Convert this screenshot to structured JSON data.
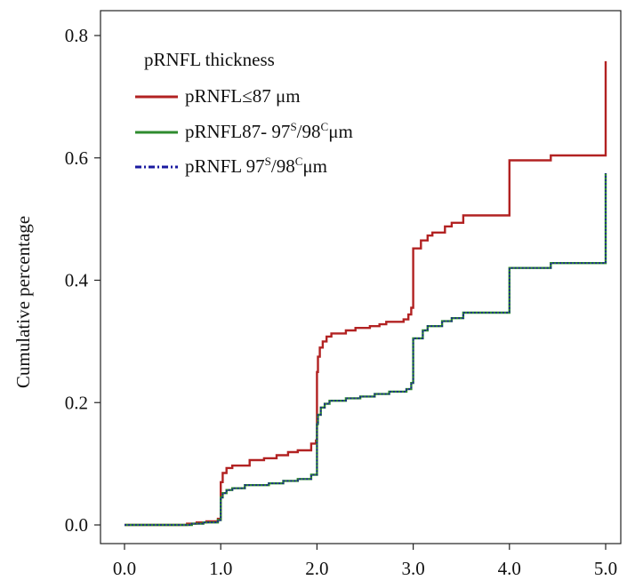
{
  "chart_data": {
    "type": "line",
    "title": "",
    "xlabel": "",
    "ylabel": "Cumulative percentage",
    "xlim": [
      0,
      5
    ],
    "ylim": [
      0,
      0.8
    ],
    "x_ticks": [
      "0.0",
      "1.0",
      "2.0",
      "3.0",
      "4.0",
      "5.0"
    ],
    "y_ticks": [
      "0.0",
      "0.2",
      "0.4",
      "0.6",
      "0.8"
    ],
    "grid": false,
    "legend": {
      "title": "pRNFL thickness",
      "placement": "top-left",
      "entries": [
        {
          "series": 0,
          "text": "pRNFL≤87 μm",
          "style": "solid"
        },
        {
          "series": 1,
          "text": "pRNFL87- 97",
          "sup1": "S",
          "mid": "/98",
          "sup2": "C",
          "tail": "μm",
          "style": "solid"
        },
        {
          "series": 2,
          "text": "pRNFL 97",
          "sup1": "S",
          "mid": "/98",
          "sup2": "C",
          "tail": "μm",
          "style": "dashdot"
        }
      ]
    },
    "series": [
      {
        "name": "pRNFL≤87 μm",
        "color": "#b22222",
        "style": "solid",
        "points": [
          [
            0.0,
            0.0
          ],
          [
            0.65,
            0.0
          ],
          [
            0.65,
            0.002
          ],
          [
            0.75,
            0.002
          ],
          [
            0.75,
            0.004
          ],
          [
            0.85,
            0.004
          ],
          [
            0.85,
            0.006
          ],
          [
            0.97,
            0.006
          ],
          [
            0.97,
            0.01
          ],
          [
            1.0,
            0.01
          ],
          [
            1.0,
            0.07
          ],
          [
            1.02,
            0.07
          ],
          [
            1.02,
            0.085
          ],
          [
            1.06,
            0.085
          ],
          [
            1.06,
            0.093
          ],
          [
            1.12,
            0.093
          ],
          [
            1.12,
            0.097
          ],
          [
            1.3,
            0.097
          ],
          [
            1.3,
            0.106
          ],
          [
            1.45,
            0.106
          ],
          [
            1.45,
            0.109
          ],
          [
            1.58,
            0.109
          ],
          [
            1.58,
            0.114
          ],
          [
            1.7,
            0.114
          ],
          [
            1.7,
            0.119
          ],
          [
            1.8,
            0.119
          ],
          [
            1.8,
            0.122
          ],
          [
            1.94,
            0.122
          ],
          [
            1.94,
            0.133
          ],
          [
            1.99,
            0.133
          ],
          [
            1.99,
            0.138
          ],
          [
            2.0,
            0.138
          ],
          [
            2.0,
            0.25
          ],
          [
            2.01,
            0.25
          ],
          [
            2.01,
            0.275
          ],
          [
            2.03,
            0.275
          ],
          [
            2.03,
            0.29
          ],
          [
            2.06,
            0.29
          ],
          [
            2.06,
            0.3
          ],
          [
            2.1,
            0.3
          ],
          [
            2.1,
            0.308
          ],
          [
            2.15,
            0.308
          ],
          [
            2.15,
            0.313
          ],
          [
            2.3,
            0.313
          ],
          [
            2.3,
            0.318
          ],
          [
            2.4,
            0.318
          ],
          [
            2.4,
            0.322
          ],
          [
            2.55,
            0.322
          ],
          [
            2.55,
            0.325
          ],
          [
            2.65,
            0.325
          ],
          [
            2.65,
            0.328
          ],
          [
            2.72,
            0.328
          ],
          [
            2.72,
            0.332
          ],
          [
            2.9,
            0.332
          ],
          [
            2.9,
            0.336
          ],
          [
            2.95,
            0.336
          ],
          [
            2.95,
            0.344
          ],
          [
            2.98,
            0.344
          ],
          [
            2.98,
            0.355
          ],
          [
            3.0,
            0.355
          ],
          [
            3.0,
            0.452
          ],
          [
            3.08,
            0.452
          ],
          [
            3.08,
            0.465
          ],
          [
            3.15,
            0.465
          ],
          [
            3.15,
            0.473
          ],
          [
            3.2,
            0.473
          ],
          [
            3.2,
            0.478
          ],
          [
            3.33,
            0.478
          ],
          [
            3.33,
            0.488
          ],
          [
            3.4,
            0.488
          ],
          [
            3.4,
            0.494
          ],
          [
            3.52,
            0.494
          ],
          [
            3.52,
            0.506
          ],
          [
            4.0,
            0.506
          ],
          [
            4.0,
            0.596
          ],
          [
            4.43,
            0.596
          ],
          [
            4.43,
            0.604
          ],
          [
            5.0,
            0.604
          ],
          [
            5.0,
            0.758
          ]
        ]
      },
      {
        "name": "pRNFL87- 97S/98Cμm",
        "color": "#2e8b2e",
        "style": "solid",
        "points": [
          [
            0.0,
            0.0
          ],
          [
            0.7,
            0.0
          ],
          [
            0.7,
            0.002
          ],
          [
            0.82,
            0.002
          ],
          [
            0.82,
            0.004
          ],
          [
            0.97,
            0.004
          ],
          [
            0.97,
            0.008
          ],
          [
            1.0,
            0.008
          ],
          [
            1.0,
            0.045
          ],
          [
            1.02,
            0.045
          ],
          [
            1.02,
            0.052
          ],
          [
            1.06,
            0.052
          ],
          [
            1.06,
            0.057
          ],
          [
            1.12,
            0.057
          ],
          [
            1.12,
            0.06
          ],
          [
            1.25,
            0.06
          ],
          [
            1.25,
            0.065
          ],
          [
            1.5,
            0.065
          ],
          [
            1.5,
            0.068
          ],
          [
            1.65,
            0.068
          ],
          [
            1.65,
            0.072
          ],
          [
            1.8,
            0.072
          ],
          [
            1.8,
            0.075
          ],
          [
            1.94,
            0.075
          ],
          [
            1.94,
            0.082
          ],
          [
            2.0,
            0.082
          ],
          [
            2.0,
            0.165
          ],
          [
            2.01,
            0.165
          ],
          [
            2.01,
            0.18
          ],
          [
            2.04,
            0.18
          ],
          [
            2.04,
            0.192
          ],
          [
            2.08,
            0.192
          ],
          [
            2.08,
            0.198
          ],
          [
            2.13,
            0.198
          ],
          [
            2.13,
            0.203
          ],
          [
            2.3,
            0.203
          ],
          [
            2.3,
            0.207
          ],
          [
            2.45,
            0.207
          ],
          [
            2.45,
            0.21
          ],
          [
            2.6,
            0.21
          ],
          [
            2.6,
            0.214
          ],
          [
            2.75,
            0.214
          ],
          [
            2.75,
            0.218
          ],
          [
            2.93,
            0.218
          ],
          [
            2.93,
            0.222
          ],
          [
            2.98,
            0.222
          ],
          [
            2.98,
            0.232
          ],
          [
            3.0,
            0.232
          ],
          [
            3.0,
            0.305
          ],
          [
            3.1,
            0.305
          ],
          [
            3.1,
            0.318
          ],
          [
            3.15,
            0.318
          ],
          [
            3.15,
            0.325
          ],
          [
            3.3,
            0.325
          ],
          [
            3.3,
            0.333
          ],
          [
            3.4,
            0.333
          ],
          [
            3.4,
            0.338
          ],
          [
            3.52,
            0.338
          ],
          [
            3.52,
            0.347
          ],
          [
            4.0,
            0.347
          ],
          [
            4.0,
            0.42
          ],
          [
            4.43,
            0.42
          ],
          [
            4.43,
            0.428
          ],
          [
            5.0,
            0.428
          ],
          [
            5.0,
            0.575
          ]
        ]
      },
      {
        "name": "pRNFL 97S/98Cμm",
        "color": "#1a1aa0",
        "style": "dashdot",
        "points": [
          [
            0.0,
            0.0
          ],
          [
            0.7,
            0.0
          ],
          [
            0.7,
            0.002
          ],
          [
            0.82,
            0.002
          ],
          [
            0.82,
            0.004
          ],
          [
            0.97,
            0.004
          ],
          [
            0.97,
            0.008
          ],
          [
            1.0,
            0.008
          ],
          [
            1.0,
            0.045
          ],
          [
            1.02,
            0.045
          ],
          [
            1.02,
            0.052
          ],
          [
            1.06,
            0.052
          ],
          [
            1.06,
            0.057
          ],
          [
            1.12,
            0.057
          ],
          [
            1.12,
            0.06
          ],
          [
            1.25,
            0.06
          ],
          [
            1.25,
            0.065
          ],
          [
            1.5,
            0.065
          ],
          [
            1.5,
            0.068
          ],
          [
            1.65,
            0.068
          ],
          [
            1.65,
            0.072
          ],
          [
            1.8,
            0.072
          ],
          [
            1.8,
            0.075
          ],
          [
            1.94,
            0.075
          ],
          [
            1.94,
            0.082
          ],
          [
            2.0,
            0.082
          ],
          [
            2.0,
            0.165
          ],
          [
            2.01,
            0.165
          ],
          [
            2.01,
            0.18
          ],
          [
            2.04,
            0.18
          ],
          [
            2.04,
            0.192
          ],
          [
            2.08,
            0.192
          ],
          [
            2.08,
            0.198
          ],
          [
            2.13,
            0.198
          ],
          [
            2.13,
            0.203
          ],
          [
            2.3,
            0.203
          ],
          [
            2.3,
            0.207
          ],
          [
            2.45,
            0.207
          ],
          [
            2.45,
            0.21
          ],
          [
            2.6,
            0.21
          ],
          [
            2.6,
            0.214
          ],
          [
            2.75,
            0.214
          ],
          [
            2.75,
            0.218
          ],
          [
            2.93,
            0.218
          ],
          [
            2.93,
            0.222
          ],
          [
            2.98,
            0.222
          ],
          [
            2.98,
            0.232
          ],
          [
            3.0,
            0.232
          ],
          [
            3.0,
            0.305
          ],
          [
            3.1,
            0.305
          ],
          [
            3.1,
            0.318
          ],
          [
            3.15,
            0.318
          ],
          [
            3.15,
            0.325
          ],
          [
            3.3,
            0.325
          ],
          [
            3.3,
            0.333
          ],
          [
            3.4,
            0.333
          ],
          [
            3.4,
            0.338
          ],
          [
            3.52,
            0.338
          ],
          [
            3.52,
            0.347
          ],
          [
            4.0,
            0.347
          ],
          [
            4.0,
            0.42
          ],
          [
            4.43,
            0.42
          ],
          [
            4.43,
            0.428
          ],
          [
            5.0,
            0.428
          ],
          [
            5.0,
            0.575
          ]
        ]
      }
    ]
  }
}
